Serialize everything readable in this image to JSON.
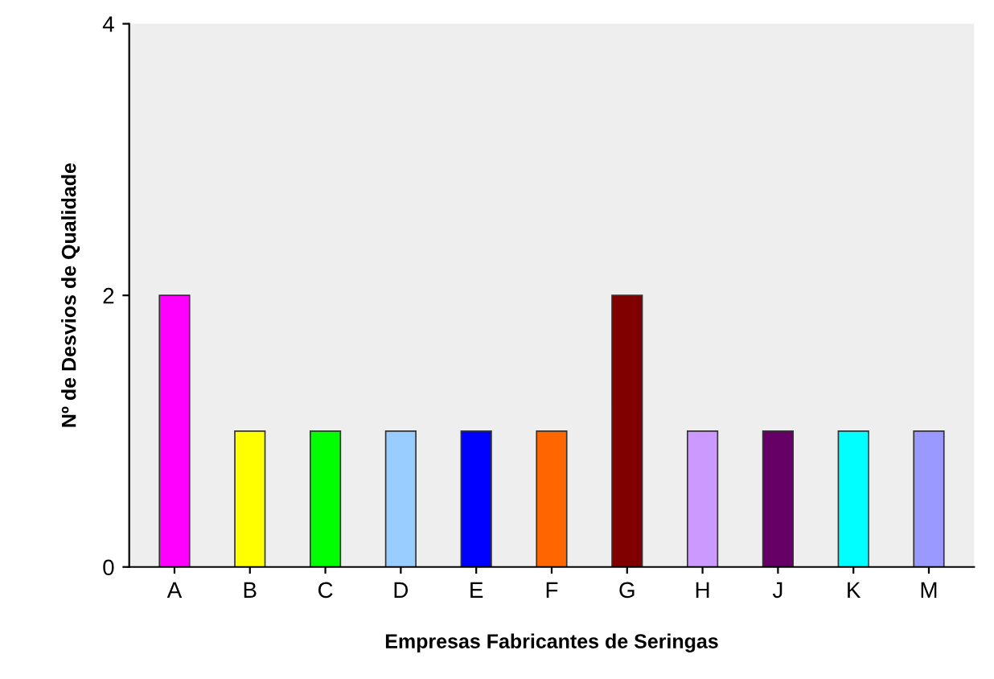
{
  "chart_data": {
    "type": "bar",
    "xlabel": "Empresas Fabricantes de Seringas",
    "ylabel": "Nº de Desvios de Qualidade",
    "categories": [
      "A",
      "B",
      "C",
      "D",
      "E",
      "F",
      "G",
      "H",
      "J",
      "K",
      "M"
    ],
    "values": [
      2,
      1,
      1,
      1,
      1,
      1,
      2,
      1,
      1,
      1,
      1
    ],
    "colors": [
      "#ff00ff",
      "#ffff00",
      "#00ff00",
      "#99ccff",
      "#0000ff",
      "#ff6600",
      "#800000",
      "#cc99ff",
      "#660066",
      "#00ffff",
      "#9999ff"
    ],
    "ylim": [
      0,
      4
    ],
    "yticks": [
      0,
      2,
      4
    ],
    "grid": false
  }
}
